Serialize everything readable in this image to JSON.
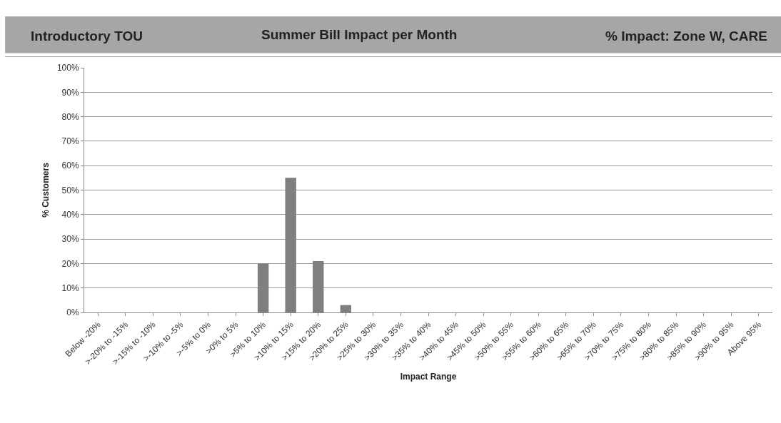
{
  "chart_data": {
    "type": "bar",
    "title": "Summer Bill Impact per Month",
    "annotations": [
      "Introductory TOU",
      "% Impact: Zone W, CARE"
    ],
    "xlabel": "Impact Range",
    "ylabel": "% Customers",
    "categories": [
      "Below -20%",
      ">-20% to -15%",
      ">-15% to -10%",
      ">-10% to -5%",
      ">-5% to 0%",
      ">0% to 5%",
      ">5% to 10%",
      ">10% to 15%",
      ">15% to 20%",
      ">20% to 25%",
      ">25% to 30%",
      ">30% to 35%",
      ">35% to 40%",
      ">40% to 45%",
      ">45% to 50%",
      ">50% to 55%",
      ">55% to 60%",
      ">60% to 65%",
      ">65% to 70%",
      ">70% to 75%",
      ">75% to 80%",
      ">80% to 85%",
      ">85% to 90%",
      ">90% to 95%",
      "Above 95%"
    ],
    "values": [
      0,
      0,
      0,
      0,
      0,
      0,
      20,
      55,
      21,
      3,
      0,
      0,
      0,
      0,
      0,
      0,
      0,
      0,
      0,
      0,
      0,
      0,
      0,
      0,
      0
    ],
    "color": "#7f7f7f",
    "ylim": [
      0,
      100
    ],
    "yticks": [
      {
        "value": 0,
        "label": "0%"
      },
      {
        "value": 10,
        "label": "10%"
      },
      {
        "value": 20,
        "label": "20%"
      },
      {
        "value": 30,
        "label": "30%"
      },
      {
        "value": 40,
        "label": "40%"
      },
      {
        "value": 50,
        "label": "50%"
      },
      {
        "value": 60,
        "label": "60%"
      },
      {
        "value": 70,
        "label": "70%"
      },
      {
        "value": 80,
        "label": "80%"
      },
      {
        "value": 90,
        "label": "90%"
      },
      {
        "value": 100,
        "label": "100%"
      }
    ],
    "grid": "y"
  }
}
